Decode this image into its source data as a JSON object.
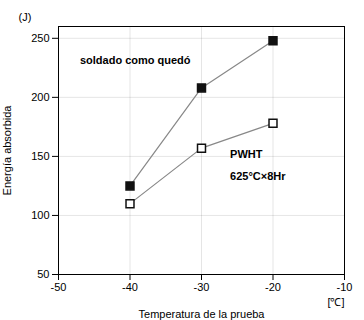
{
  "chart_data": {
    "type": "line",
    "xlabel": "Temperatura de la prueba",
    "ylabel": "Energía absorbida",
    "xlabel_unit": "[℃]",
    "ylabel_unit": "(J)",
    "x": [
      -40,
      -30,
      -20
    ],
    "series": [
      {
        "color": "#111111",
        "marker": "square",
        "values": [
          125,
          208,
          248
        ]
      },
      {
        "color": "#111111",
        "marker": "open_square",
        "values": [
          110,
          157,
          178
        ]
      }
    ],
    "color": "#888888",
    "xlim": [
      -50,
      -10
    ],
    "ylim": [
      50,
      260
    ],
    "xticks": [
      -50,
      -40,
      -30,
      -20,
      -10
    ],
    "yticks": [
      50,
      100,
      150,
      200,
      250
    ],
    "grid": true,
    "annotations": [
      {
        "text": "soldado como quedó",
        "x": -47,
        "y": 228
      },
      {
        "text": "PWHT",
        "x": -26,
        "y": 155
      },
      {
        "text": "625°C×8Hr",
        "x": -26,
        "y": 137
      }
    ]
  }
}
